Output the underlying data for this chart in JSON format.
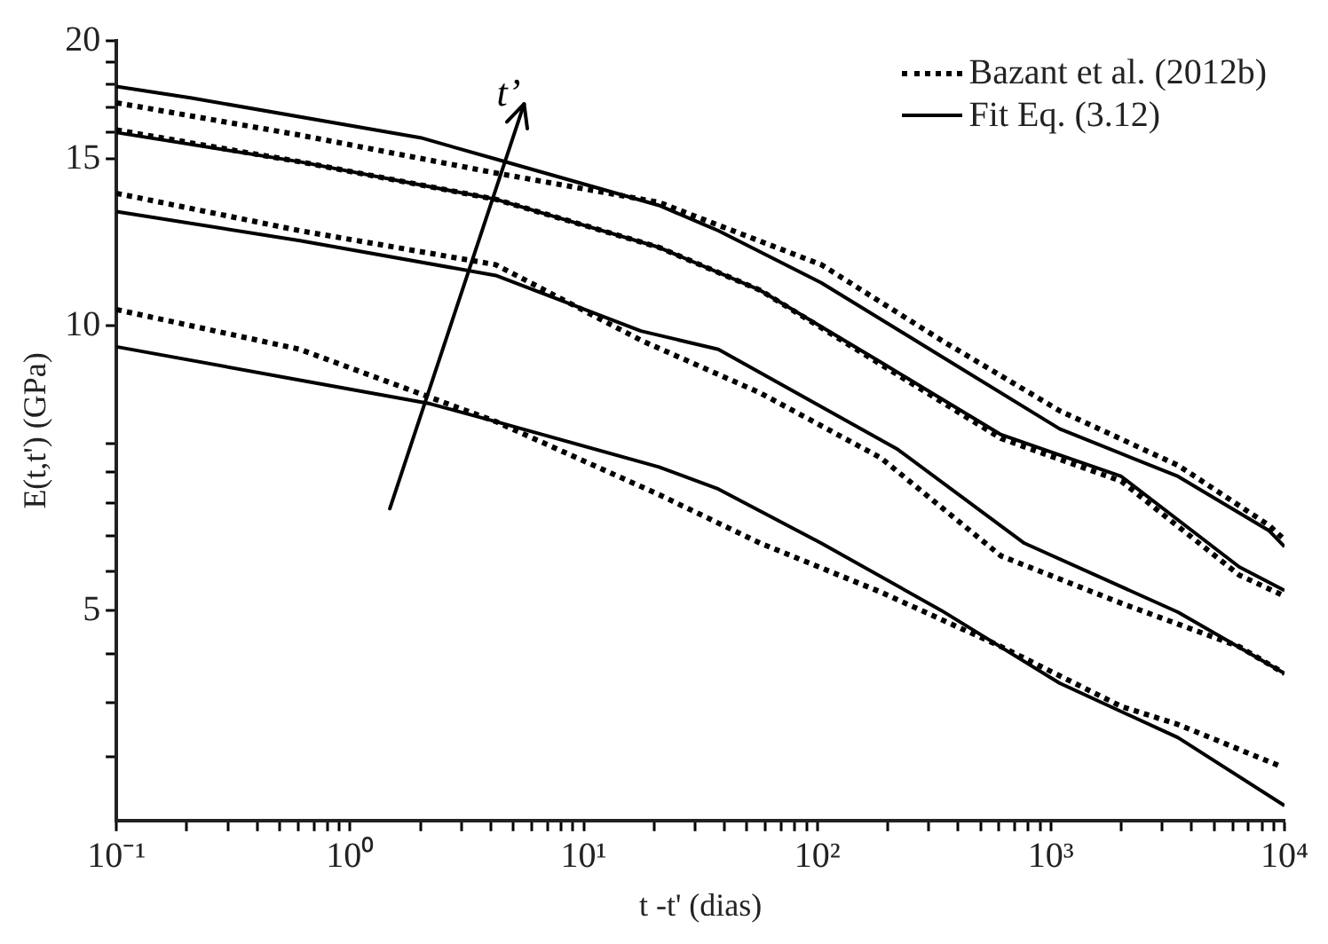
{
  "chart_data": {
    "type": "line",
    "xlabel": "t -t' (dias)",
    "ylabel": "E(t,t') (GPa)",
    "log": "xy",
    "xlim": [
      0.1,
      10000
    ],
    "ylim": [
      3,
      20
    ],
    "xticks": [
      {
        "value": 0.1,
        "label": "10⁻¹"
      },
      {
        "value": 0.2,
        "label": null
      },
      {
        "value": 0.3,
        "label": null
      },
      {
        "value": 0.4,
        "label": null
      },
      {
        "value": 0.5,
        "label": null
      },
      {
        "value": 0.6,
        "label": null
      },
      {
        "value": 0.7,
        "label": null
      },
      {
        "value": 0.8,
        "label": null
      },
      {
        "value": 0.9,
        "label": null
      },
      {
        "value": 1,
        "label": "10⁰"
      },
      {
        "value": 2,
        "label": null
      },
      {
        "value": 3,
        "label": null
      },
      {
        "value": 4,
        "label": null
      },
      {
        "value": 5,
        "label": null
      },
      {
        "value": 6,
        "label": null
      },
      {
        "value": 7,
        "label": null
      },
      {
        "value": 8,
        "label": null
      },
      {
        "value": 9,
        "label": null
      },
      {
        "value": 10,
        "label": "10¹"
      },
      {
        "value": 20,
        "label": null
      },
      {
        "value": 30,
        "label": null
      },
      {
        "value": 40,
        "label": null
      },
      {
        "value": 50,
        "label": null
      },
      {
        "value": 60,
        "label": null
      },
      {
        "value": 70,
        "label": null
      },
      {
        "value": 80,
        "label": null
      },
      {
        "value": 90,
        "label": null
      },
      {
        "value": 100,
        "label": "10²"
      },
      {
        "value": 200,
        "label": null
      },
      {
        "value": 300,
        "label": null
      },
      {
        "value": 400,
        "label": null
      },
      {
        "value": 500,
        "label": null
      },
      {
        "value": 600,
        "label": null
      },
      {
        "value": 700,
        "label": null
      },
      {
        "value": 800,
        "label": null
      },
      {
        "value": 900,
        "label": null
      },
      {
        "value": 1000,
        "label": "10³"
      },
      {
        "value": 2000,
        "label": null
      },
      {
        "value": 3000,
        "label": null
      },
      {
        "value": 4000,
        "label": null
      },
      {
        "value": 5000,
        "label": null
      },
      {
        "value": 6000,
        "label": null
      },
      {
        "value": 7000,
        "label": null
      },
      {
        "value": 8000,
        "label": null
      },
      {
        "value": 9000,
        "label": null
      },
      {
        "value": 10000,
        "label": "10⁴"
      }
    ],
    "yticks": [
      {
        "value": 3.5,
        "label": null
      },
      {
        "value": 4,
        "label": null
      },
      {
        "value": 4.5,
        "label": null
      },
      5,
      {
        "value": 5.5,
        "label": null
      },
      {
        "value": 6,
        "label": null
      },
      {
        "value": 6.5,
        "label": null
      },
      {
        "value": 7,
        "label": null
      },
      {
        "value": 7.5,
        "label": null
      },
      10,
      15,
      {
        "value": 16,
        "label": null
      },
      {
        "value": 17,
        "label": null
      },
      {
        "value": 18,
        "label": null
      },
      {
        "value": 19,
        "label": null
      },
      20
    ],
    "grid": false,
    "legend": "top right",
    "marker": "none",
    "annotations": [
      "t’"
    ],
    "series": [
      {
        "name": "Bazant et al. (2012b)",
        "color": "#000000",
        "line_style": "dotted",
        "x": [
          0.1,
          0.61,
          4.2,
          21,
          104,
          340,
          1090,
          3500,
          8600,
          10000
        ],
        "values": [
          17.2,
          15.9,
          14.5,
          13.5,
          11.6,
          9.65,
          8.13,
          7.12,
          6.15,
          5.94
        ]
      },
      {
        "name": "Fit Eq. (3.12)",
        "color": "#000000",
        "line_style": "solid",
        "x": [
          0.1,
          0.21,
          2,
          4.2,
          21,
          37.7,
          104,
          340,
          1090,
          3500,
          8600,
          10000
        ],
        "values": [
          17.9,
          17.4,
          15.8,
          15.0,
          13.4,
          12.6,
          11.1,
          9.28,
          7.78,
          6.93,
          6.07,
          5.84
        ]
      },
      {
        "color": "#000000",
        "line_style": "dotted",
        "x": [
          0.1,
          0.61,
          4.2,
          21,
          57,
          187,
          612,
          2000,
          6400,
          10000
        ],
        "values": [
          16.1,
          14.9,
          13.6,
          12.1,
          10.9,
          9.1,
          7.6,
          6.85,
          5.45,
          5.18
        ]
      },
      {
        "color": "#000000",
        "line_style": "solid",
        "x": [
          0.1,
          0.61,
          4.2,
          21,
          57,
          187,
          612,
          2000,
          6400,
          10000
        ],
        "values": [
          16.0,
          14.9,
          13.6,
          12.1,
          10.9,
          9.15,
          7.67,
          6.93,
          5.56,
          5.25
        ]
      },
      {
        "color": "#000000",
        "line_style": "dotted",
        "x": [
          0.1,
          0.61,
          4.2,
          17.6,
          57,
          187,
          612,
          2000,
          6400,
          10000
        ],
        "values": [
          13.8,
          12.6,
          11.6,
          9.65,
          8.49,
          7.25,
          5.71,
          5.09,
          4.58,
          4.29
        ]
      },
      {
        "color": "#000000",
        "line_style": "solid",
        "x": [
          0.1,
          0.61,
          4.2,
          17.6,
          37.7,
          221,
          770,
          3500,
          10000
        ],
        "values": [
          13.2,
          12.3,
          11.3,
          9.87,
          9.44,
          7.4,
          5.89,
          4.98,
          4.29
        ]
      },
      {
        "color": "#000000",
        "line_style": "dotted",
        "x": [
          0.1,
          0.61,
          4.2,
          21,
          57,
          187,
          612,
          2000,
          3500,
          9700
        ],
        "values": [
          10.4,
          9.44,
          7.92,
          6.63,
          5.89,
          5.23,
          4.58,
          3.96,
          3.79,
          3.42
        ]
      },
      {
        "color": "#000000",
        "line_style": "solid",
        "x": [
          0.1,
          0.61,
          2.2,
          4.2,
          21,
          37.7,
          104,
          340,
          1090,
          3500,
          10000
        ],
        "values": [
          9.5,
          8.76,
          8.27,
          7.92,
          7.09,
          6.72,
          5.89,
          5.0,
          4.19,
          3.67,
          3.11
        ]
      }
    ]
  }
}
